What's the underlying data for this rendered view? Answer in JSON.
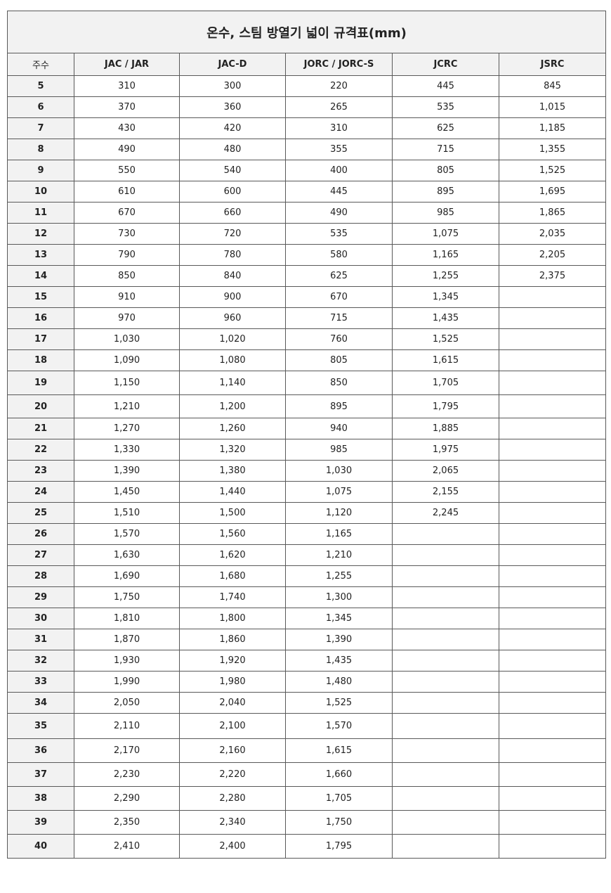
{
  "title": "온수, 스팀 방열기 넓이 규격표(mm)",
  "headers": [
    "주수",
    "JAC / JAR",
    "JAC-D",
    "JORC / JORC-S",
    "JCRC",
    "JSRC"
  ],
  "rows": [
    [
      "5",
      "310",
      "300",
      "220",
      "445",
      "845"
    ],
    [
      "6",
      "370",
      "360",
      "265",
      "535",
      "1,015"
    ],
    [
      "7",
      "430",
      "420",
      "310",
      "625",
      "1,185"
    ],
    [
      "8",
      "490",
      "480",
      "355",
      "715",
      "1,355"
    ],
    [
      "9",
      "550",
      "540",
      "400",
      "805",
      "1,525"
    ],
    [
      "10",
      "610",
      "600",
      "445",
      "895",
      "1,695"
    ],
    [
      "11",
      "670",
      "660",
      "490",
      "985",
      "1,865"
    ],
    [
      "12",
      "730",
      "720",
      "535",
      "1,075",
      "2,035"
    ],
    [
      "13",
      "790",
      "780",
      "580",
      "1,165",
      "2,205"
    ],
    [
      "14",
      "850",
      "840",
      "625",
      "1,255",
      "2,375"
    ],
    [
      "15",
      "910",
      "900",
      "670",
      "1,345",
      ""
    ],
    [
      "16",
      "970",
      "960",
      "715",
      "1,435",
      ""
    ],
    [
      "17",
      "1,030",
      "1,020",
      "760",
      "1,525",
      ""
    ],
    [
      "18",
      "1,090",
      "1,080",
      "805",
      "1,615",
      ""
    ],
    [
      "19",
      "1,150",
      "1,140",
      "850",
      "1,705",
      ""
    ],
    [
      "20",
      "1,210",
      "1,200",
      "895",
      "1,795",
      ""
    ],
    [
      "21",
      "1,270",
      "1,260",
      "940",
      "1,885",
      ""
    ],
    [
      "22",
      "1,330",
      "1,320",
      "985",
      "1,975",
      ""
    ],
    [
      "23",
      "1,390",
      "1,380",
      "1,030",
      "2,065",
      ""
    ],
    [
      "24",
      "1,450",
      "1,440",
      "1,075",
      "2,155",
      ""
    ],
    [
      "25",
      "1,510",
      "1,500",
      "1,120",
      "2,245",
      ""
    ],
    [
      "26",
      "1,570",
      "1,560",
      "1,165",
      "",
      ""
    ],
    [
      "27",
      "1,630",
      "1,620",
      "1,210",
      "",
      ""
    ],
    [
      "28",
      "1,690",
      "1,680",
      "1,255",
      "",
      ""
    ],
    [
      "29",
      "1,750",
      "1,740",
      "1,300",
      "",
      ""
    ],
    [
      "30",
      "1,810",
      "1,800",
      "1,345",
      "",
      ""
    ],
    [
      "31",
      "1,870",
      "1,860",
      "1,390",
      "",
      ""
    ],
    [
      "32",
      "1,930",
      "1,920",
      "1,435",
      "",
      ""
    ],
    [
      "33",
      "1,990",
      "1,980",
      "1,480",
      "",
      ""
    ],
    [
      "34",
      "2,050",
      "2,040",
      "1,525",
      "",
      ""
    ],
    [
      "35",
      "2,110",
      "2,100",
      "1,570",
      "",
      ""
    ],
    [
      "36",
      "2,170",
      "2,160",
      "1,615",
      "",
      ""
    ],
    [
      "37",
      "2,230",
      "2,220",
      "1,660",
      "",
      ""
    ],
    [
      "38",
      "2,290",
      "2,280",
      "1,705",
      "",
      ""
    ],
    [
      "39",
      "2,350",
      "2,340",
      "1,750",
      "",
      ""
    ],
    [
      "40",
      "2,410",
      "2,400",
      "1,795",
      "",
      ""
    ]
  ]
}
